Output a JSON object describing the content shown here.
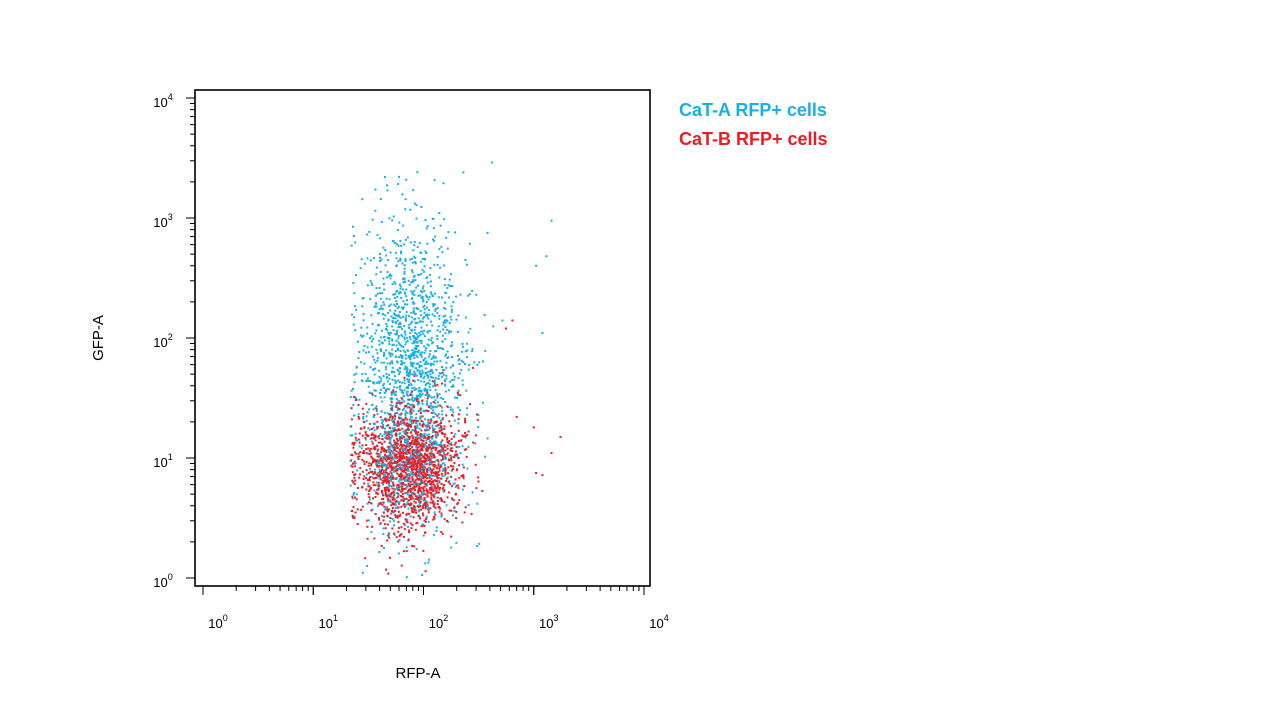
{
  "chart_data": {
    "type": "scatter",
    "title": "",
    "xlabel": "RFP-A",
    "ylabel": "GFP-A",
    "x_scale": "log",
    "y_scale": "log",
    "xlim": [
      1,
      10000
    ],
    "ylim": [
      1,
      10000
    ],
    "grid": false,
    "legend_position": "right",
    "ticks": [
      {
        "base": "10",
        "exp": "0"
      },
      {
        "base": "10",
        "exp": "1"
      },
      {
        "base": "10",
        "exp": "2"
      },
      {
        "base": "10",
        "exp": "3"
      },
      {
        "base": "10",
        "exp": "4"
      }
    ],
    "series": [
      {
        "name": "CaT-A RFP+ cells",
        "color": "#17b0e6",
        "points": 1600,
        "x_log_mean": 1.88,
        "x_log_sd": 0.24,
        "x_log_min": 1.34,
        "y_log_mean": 1.72,
        "y_log_sd": 0.62,
        "y_log_min": 0.0,
        "outliers": [
          [
            230,
            2400
          ],
          [
            420,
            2900
          ],
          [
            60,
            2200
          ],
          [
            1450,
            950
          ],
          [
            1300,
            480
          ],
          [
            1050,
            400
          ],
          [
            520,
            140
          ],
          [
            430,
            125
          ],
          [
            1200,
            110
          ]
        ]
      },
      {
        "name": "CaT-B RFP+ cells",
        "color": "#ec1c24",
        "points": 1500,
        "x_log_mean": 1.87,
        "x_log_sd": 0.24,
        "x_log_min": 1.34,
        "y_log_mean": 0.93,
        "y_log_sd": 0.26,
        "y_log_min": 0.0,
        "outliers": [
          [
            1750,
            15
          ],
          [
            1450,
            11
          ],
          [
            1050,
            7.5
          ],
          [
            1200,
            7.2
          ],
          [
            640,
            140
          ],
          [
            560,
            120
          ],
          [
            700,
            22
          ],
          [
            1000,
            18
          ]
        ]
      }
    ]
  }
}
